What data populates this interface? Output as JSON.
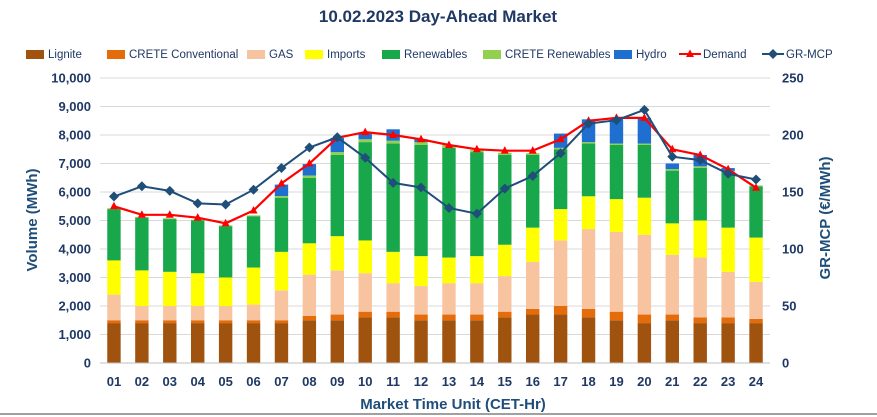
{
  "chart_data": {
    "type": "bar",
    "title": "10.02.2023  Day-Ahead Market",
    "xlabel": "Market Time Unit (CET-Hr)",
    "ylabel": "Volume (MWh)",
    "y2label": "GR-MCP (€/MWh)",
    "categories": [
      "01",
      "02",
      "03",
      "04",
      "05",
      "06",
      "07",
      "08",
      "09",
      "10",
      "11",
      "12",
      "13",
      "14",
      "15",
      "16",
      "17",
      "18",
      "19",
      "20",
      "21",
      "22",
      "23",
      "24"
    ],
    "ylim": [
      0,
      10000
    ],
    "y2lim": [
      0,
      250
    ],
    "yticks": [
      "0",
      "1,000",
      "2,000",
      "3,000",
      "4,000",
      "5,000",
      "6,000",
      "7,000",
      "8,000",
      "9,000",
      "10,000"
    ],
    "y2ticks": [
      "0",
      "50",
      "100",
      "150",
      "200",
      "250"
    ],
    "grid": true,
    "legend_position": "top",
    "series": [
      {
        "name": "Lignite",
        "kind": "stacked-bar",
        "color": "#a0520f",
        "values": [
          1400,
          1400,
          1400,
          1400,
          1400,
          1400,
          1400,
          1500,
          1500,
          1600,
          1600,
          1500,
          1500,
          1500,
          1600,
          1700,
          1700,
          1600,
          1500,
          1400,
          1500,
          1400,
          1400,
          1400
        ]
      },
      {
        "name": "CRETE Conventional",
        "kind": "stacked-bar",
        "color": "#e46c0a",
        "values": [
          100,
          100,
          100,
          100,
          100,
          100,
          100,
          150,
          200,
          200,
          200,
          200,
          200,
          200,
          200,
          200,
          300,
          300,
          300,
          300,
          200,
          200,
          200,
          150
        ]
      },
      {
        "name": "GAS",
        "kind": "stacked-bar",
        "color": "#f8c4a0",
        "values": [
          900,
          500,
          500,
          500,
          500,
          550,
          1050,
          1450,
          1550,
          1350,
          1000,
          1000,
          1100,
          1100,
          1250,
          1650,
          2300,
          2800,
          2800,
          2800,
          2100,
          2100,
          1600,
          1300
        ]
      },
      {
        "name": "Imports",
        "kind": "stacked-bar",
        "color": "#ffff00",
        "values": [
          1200,
          1250,
          1200,
          1150,
          1000,
          1300,
          1350,
          1100,
          1200,
          1150,
          1100,
          1050,
          900,
          950,
          1100,
          1200,
          1100,
          1150,
          1150,
          1300,
          1100,
          1300,
          1550,
          1550
        ]
      },
      {
        "name": "Renewables",
        "kind": "stacked-bar",
        "color": "#18a84b",
        "values": [
          1800,
          1850,
          1850,
          1850,
          1800,
          1800,
          1900,
          2300,
          2850,
          3450,
          3800,
          3900,
          3850,
          3650,
          3150,
          2550,
          2100,
          1850,
          1900,
          1850,
          1850,
          1850,
          1950,
          1800
        ]
      },
      {
        "name": "CRETE Renewables",
        "kind": "stacked-bar",
        "color": "#92d050",
        "values": [
          30,
          30,
          30,
          30,
          30,
          30,
          60,
          80,
          100,
          100,
          100,
          100,
          100,
          80,
          80,
          60,
          50,
          50,
          50,
          50,
          50,
          50,
          40,
          30
        ]
      },
      {
        "name": "Hydro",
        "kind": "stacked-bar",
        "color": "#1f6fd0",
        "values": [
          0,
          0,
          0,
          0,
          0,
          0,
          400,
          400,
          500,
          200,
          400,
          100,
          0,
          0,
          0,
          0,
          500,
          800,
          900,
          900,
          200,
          400,
          100,
          0
        ]
      },
      {
        "name": "Demand",
        "kind": "line",
        "axis": "left",
        "color": "#ff0000",
        "values": [
          5500,
          5200,
          5200,
          5100,
          4900,
          5350,
          6300,
          7000,
          7900,
          8100,
          8000,
          7850,
          7650,
          7500,
          7450,
          7450,
          7850,
          8500,
          8600,
          8600,
          7500,
          7300,
          6800,
          6150
        ]
      },
      {
        "name": "GR-MCP",
        "kind": "line",
        "axis": "right",
        "color": "#1f4e79",
        "values": [
          146,
          155,
          151,
          140,
          139,
          152,
          171,
          189,
          198,
          180,
          158,
          154,
          136,
          131,
          153,
          164,
          184,
          210,
          213,
          222,
          181,
          178,
          166,
          161
        ]
      }
    ]
  }
}
